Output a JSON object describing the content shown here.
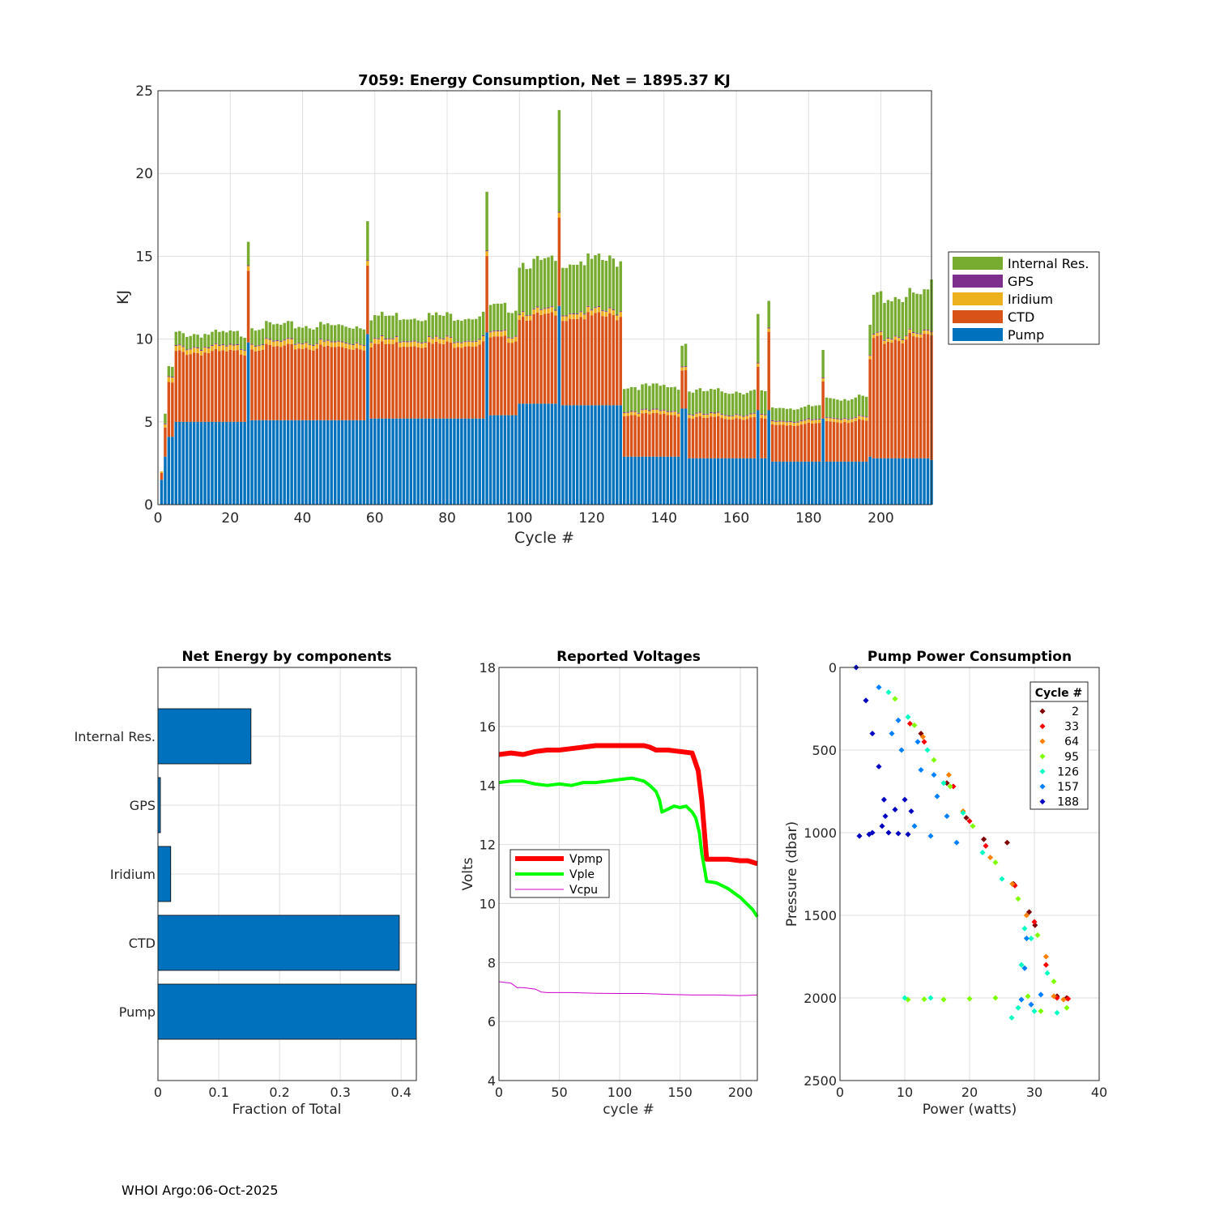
{
  "footer": "WHOI Argo:06-Oct-2025",
  "chart_data": [
    {
      "type": "bar",
      "stacked": true,
      "title": "7059: Energy Consumption,  Net = 1895.37 KJ",
      "xlabel": "Cycle #",
      "ylabel": "KJ",
      "xlim": [
        0,
        214
      ],
      "ylim": [
        0,
        25
      ],
      "xticks": [
        0,
        20,
        40,
        60,
        80,
        100,
        120,
        140,
        160,
        180,
        200
      ],
      "yticks": [
        0,
        5,
        10,
        15,
        20,
        25
      ],
      "legend": [
        "Internal Res.",
        "GPS",
        "Iridium",
        "CTD",
        "Pump"
      ],
      "colors": {
        "Pump": "#0072BD",
        "CTD": "#D95319",
        "Iridium": "#EDB120",
        "GPS": "#7E2F8E",
        "Internal Res.": "#77AC30"
      },
      "segments": [
        {
          "from": 1,
          "to": 1,
          "pump": 1.5,
          "ctd": 0.4,
          "iridium": 0.1,
          "gps": 0.0,
          "internal": 0.0
        },
        {
          "from": 2,
          "to": 2,
          "pump": 2.9,
          "ctd": 1.8,
          "iridium": 0.2,
          "gps": 0.05,
          "internal": 0.6
        },
        {
          "from": 3,
          "to": 4,
          "pump": 4.1,
          "ctd": 3.3,
          "iridium": 0.3,
          "gps": 0.05,
          "internal": 0.6
        },
        {
          "from": 5,
          "to": 24,
          "pump": 5.0,
          "ctd": 4.3,
          "iridium": 0.3,
          "gps": 0.05,
          "internal": 0.8
        },
        {
          "from": 25,
          "to": 25,
          "pump": 9.8,
          "ctd": 4.6,
          "iridium": 0.3,
          "gps": 0.05,
          "internal": 1.5
        },
        {
          "from": 26,
          "to": 57,
          "pump": 5.1,
          "ctd": 4.5,
          "iridium": 0.3,
          "gps": 0.05,
          "internal": 1.0
        },
        {
          "from": 58,
          "to": 58,
          "pump": 10.3,
          "ctd": 4.4,
          "iridium": 0.3,
          "gps": 0.05,
          "internal": 2.5
        },
        {
          "from": 59,
          "to": 90,
          "pump": 5.2,
          "ctd": 4.6,
          "iridium": 0.3,
          "gps": 0.05,
          "internal": 1.4
        },
        {
          "from": 91,
          "to": 91,
          "pump": 10.4,
          "ctd": 4.7,
          "iridium": 0.3,
          "gps": 0.05,
          "internal": 3.6
        },
        {
          "from": 92,
          "to": 99,
          "pump": 5.4,
          "ctd": 4.7,
          "iridium": 0.3,
          "gps": 0.05,
          "internal": 1.6
        },
        {
          "from": 100,
          "to": 110,
          "pump": 6.1,
          "ctd": 5.4,
          "iridium": 0.3,
          "gps": 0.05,
          "internal": 3.0
        },
        {
          "from": 111,
          "to": 111,
          "pump": 12.0,
          "ctd": 5.3,
          "iridium": 0.3,
          "gps": 0.05,
          "internal": 6.1
        },
        {
          "from": 112,
          "to": 128,
          "pump": 6.0,
          "ctd": 5.5,
          "iridium": 0.3,
          "gps": 0.05,
          "internal": 3.1
        },
        {
          "from": 129,
          "to": 144,
          "pump": 2.9,
          "ctd": 2.6,
          "iridium": 0.2,
          "gps": 0.05,
          "internal": 1.5
        },
        {
          "from": 145,
          "to": 145,
          "pump": 5.8,
          "ctd": 2.4,
          "iridium": 0.2,
          "gps": 0.05,
          "internal": 1.3
        },
        {
          "from": 146,
          "to": 146,
          "pump": 5.8,
          "ctd": 2.4,
          "iridium": 0.2,
          "gps": 0.05,
          "internal": 1.4
        },
        {
          "from": 147,
          "to": 165,
          "pump": 2.8,
          "ctd": 2.5,
          "iridium": 0.2,
          "gps": 0.05,
          "internal": 1.4
        },
        {
          "from": 166,
          "to": 166,
          "pump": 5.7,
          "ctd": 2.6,
          "iridium": 0.2,
          "gps": 0.05,
          "internal": 2.9
        },
        {
          "from": 167,
          "to": 168,
          "pump": 2.8,
          "ctd": 2.4,
          "iridium": 0.2,
          "gps": 0.05,
          "internal": 1.4
        },
        {
          "from": 169,
          "to": 169,
          "pump": 5.7,
          "ctd": 4.7,
          "iridium": 0.2,
          "gps": 0.05,
          "internal": 1.6
        },
        {
          "from": 170,
          "to": 183,
          "pump": 2.6,
          "ctd": 2.3,
          "iridium": 0.2,
          "gps": 0.05,
          "internal": 0.8
        },
        {
          "from": 184,
          "to": 184,
          "pump": 5.2,
          "ctd": 2.3,
          "iridium": 0.2,
          "gps": 0.05,
          "internal": 1.7
        },
        {
          "from": 185,
          "to": 196,
          "pump": 2.6,
          "ctd": 2.5,
          "iridium": 0.2,
          "gps": 0.05,
          "internal": 1.2
        },
        {
          "from": 197,
          "to": 197,
          "pump": 2.9,
          "ctd": 5.8,
          "iridium": 0.2,
          "gps": 0.05,
          "internal": 1.8
        },
        {
          "from": 198,
          "to": 213,
          "pump": 2.8,
          "ctd": 7.4,
          "iridium": 0.2,
          "gps": 0.05,
          "internal": 2.4
        },
        {
          "from": 214,
          "to": 214,
          "pump": 2.7,
          "ctd": 7.5,
          "iridium": 0.2,
          "gps": 0.05,
          "internal": 3.1
        }
      ]
    },
    {
      "type": "barh",
      "title": "Net Energy by components",
      "xlabel": "Fraction of Total",
      "categories": [
        "Pump",
        "CTD",
        "Iridium",
        "GPS",
        "Internal Res."
      ],
      "values": [
        0.43,
        0.397,
        0.021,
        0.004,
        0.153
      ],
      "xlim": [
        0,
        0.425
      ],
      "xticks": [
        0,
        0.1,
        0.2,
        0.3,
        0.4
      ],
      "color": "#0072BD"
    },
    {
      "type": "line",
      "title": "Reported Voltages",
      "xlabel": "cycle #",
      "ylabel": "Volts",
      "xlim": [
        0,
        214
      ],
      "ylim": [
        4,
        18
      ],
      "xticks": [
        0,
        50,
        100,
        150,
        200
      ],
      "yticks": [
        4,
        6,
        8,
        10,
        12,
        14,
        16,
        18
      ],
      "series": [
        {
          "name": "Vpmp",
          "color": "#ff0000",
          "width": 6,
          "x": [
            0,
            10,
            20,
            30,
            40,
            50,
            60,
            70,
            80,
            90,
            100,
            110,
            120,
            125,
            130,
            140,
            150,
            160,
            165,
            168,
            170,
            172,
            180,
            190,
            200,
            206,
            210,
            214
          ],
          "y": [
            15.05,
            15.1,
            15.05,
            15.15,
            15.2,
            15.2,
            15.25,
            15.3,
            15.35,
            15.35,
            15.35,
            15.35,
            15.35,
            15.3,
            15.2,
            15.2,
            15.15,
            15.1,
            14.5,
            13.5,
            12.5,
            11.5,
            11.5,
            11.5,
            11.45,
            11.45,
            11.4,
            11.35
          ]
        },
        {
          "name": "Vple",
          "color": "#00ff00",
          "width": 4,
          "x": [
            0,
            10,
            20,
            30,
            40,
            50,
            60,
            70,
            80,
            90,
            100,
            110,
            120,
            125,
            130,
            133,
            135,
            140,
            145,
            150,
            155,
            160,
            163,
            166,
            168,
            171,
            172,
            180,
            190,
            200,
            210,
            214
          ],
          "y": [
            14.1,
            14.15,
            14.15,
            14.05,
            14.0,
            14.05,
            14.0,
            14.1,
            14.1,
            14.15,
            14.2,
            14.25,
            14.15,
            14.0,
            13.8,
            13.5,
            13.1,
            13.2,
            13.3,
            13.25,
            13.3,
            13.1,
            12.9,
            12.4,
            11.7,
            11.0,
            10.75,
            10.7,
            10.5,
            10.2,
            9.8,
            9.55
          ]
        },
        {
          "name": "Vcpu",
          "color": "#d000d0",
          "width": 1,
          "x": [
            0,
            10,
            15,
            20,
            30,
            35,
            40,
            60,
            80,
            100,
            120,
            140,
            160,
            180,
            200,
            214
          ],
          "y": [
            7.35,
            7.3,
            7.15,
            7.15,
            7.1,
            7.0,
            6.98,
            6.98,
            6.96,
            6.95,
            6.95,
            6.92,
            6.9,
            6.9,
            6.88,
            6.9
          ]
        }
      ]
    },
    {
      "type": "scatter",
      "title": "Pump Power Consumption",
      "xlabel": "Power (watts)",
      "ylabel": "Pressure (dbar)",
      "xlim": [
        0,
        40
      ],
      "ylim": [
        0,
        2500
      ],
      "yreversed": true,
      "xticks": [
        0,
        10,
        20,
        30,
        40
      ],
      "yticks": [
        0,
        500,
        1000,
        1500,
        2000,
        2500
      ],
      "legend_title": "Cycle #",
      "groups": [
        {
          "cycle": "2",
          "color": "#800000",
          "points": [
            [
              12.5,
              400
            ],
            [
              16.5,
              700
            ],
            [
              19.5,
              910
            ],
            [
              22.2,
              1040
            ],
            [
              25.8,
              1060
            ],
            [
              26.8,
              1310
            ],
            [
              29.2,
              1480
            ],
            [
              30.1,
              1560
            ],
            [
              33.5,
              1990
            ],
            [
              35.0,
              2000
            ]
          ]
        },
        {
          "cycle": "33",
          "color": "#ff0000",
          "points": [
            [
              10.8,
              340
            ],
            [
              13.0,
              450
            ],
            [
              17.5,
              720
            ],
            [
              20.0,
              930
            ],
            [
              22.5,
              1080
            ],
            [
              27.0,
              1320
            ],
            [
              30.0,
              1540
            ],
            [
              31.8,
              1800
            ],
            [
              33.5,
              2000
            ],
            [
              35.2,
              2005
            ]
          ]
        },
        {
          "cycle": "64",
          "color": "#ff8000",
          "points": [
            [
              12.8,
              420
            ],
            [
              16.8,
              650
            ],
            [
              19.0,
              870
            ],
            [
              23.2,
              1150
            ],
            [
              26.6,
              1310
            ],
            [
              28.8,
              1500
            ],
            [
              31.8,
              1750
            ],
            [
              33.0,
              1990
            ],
            [
              34.5,
              2010
            ]
          ]
        },
        {
          "cycle": "95",
          "color": "#80ff00",
          "points": [
            [
              8.5,
              190
            ],
            [
              11.5,
              350
            ],
            [
              14.5,
              560
            ],
            [
              17.0,
              720
            ],
            [
              20.5,
              960
            ],
            [
              24.0,
              1180
            ],
            [
              27.5,
              1400
            ],
            [
              30.5,
              1620
            ],
            [
              33.0,
              1900
            ],
            [
              29.0,
              1990
            ],
            [
              24.0,
              2000
            ],
            [
              20.0,
              2005
            ],
            [
              16.0,
              2010
            ],
            [
              13.0,
              2008
            ],
            [
              10.5,
              2010
            ],
            [
              31.0,
              2080
            ],
            [
              35.0,
              2060
            ]
          ]
        },
        {
          "cycle": "126",
          "color": "#00ffc0",
          "points": [
            [
              7.5,
              150
            ],
            [
              10.5,
              300
            ],
            [
              13.5,
              500
            ],
            [
              16.0,
              700
            ],
            [
              19.0,
              880
            ],
            [
              22.0,
              1120
            ],
            [
              25.0,
              1280
            ],
            [
              28.5,
              1580
            ],
            [
              29.5,
              1640
            ],
            [
              28.0,
              1800
            ],
            [
              32.0,
              1850
            ],
            [
              27.5,
              2060
            ],
            [
              30.0,
              2080
            ],
            [
              33.5,
              2090
            ],
            [
              10.0,
              2000
            ],
            [
              14.0,
              2000
            ],
            [
              26.5,
              2120
            ]
          ]
        },
        {
          "cycle": "157",
          "color": "#0080ff",
          "points": [
            [
              6.0,
              120
            ],
            [
              9.0,
              320
            ],
            [
              12.0,
              450
            ],
            [
              14.5,
              650
            ],
            [
              16.5,
              900
            ],
            [
              15.0,
              780
            ],
            [
              12.5,
              620
            ],
            [
              9.5,
              500
            ],
            [
              8.0,
              400
            ],
            [
              14.0,
              1020
            ],
            [
              18.0,
              1060
            ],
            [
              11.5,
              960
            ],
            [
              28.8,
              1640
            ],
            [
              28.5,
              1820
            ],
            [
              31.0,
              1980
            ],
            [
              28.0,
              2010
            ],
            [
              29.5,
              2040
            ]
          ]
        },
        {
          "cycle": "188",
          "color": "#0000c0",
          "points": [
            [
              2.5,
              0
            ],
            [
              4.0,
              200
            ],
            [
              5.0,
              400
            ],
            [
              6.0,
              600
            ],
            [
              6.8,
              800
            ],
            [
              7.0,
              900
            ],
            [
              6.5,
              960
            ],
            [
              4.5,
              1010
            ],
            [
              3.0,
              1020
            ],
            [
              7.5,
              1000
            ],
            [
              9.0,
              1005
            ],
            [
              10.5,
              1010
            ],
            [
              5.0,
              1000
            ],
            [
              8.5,
              860
            ],
            [
              10.0,
              800
            ],
            [
              11.0,
              870
            ]
          ]
        }
      ]
    }
  ]
}
